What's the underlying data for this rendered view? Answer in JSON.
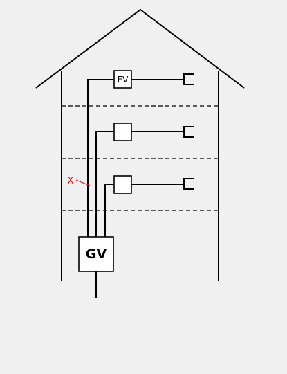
{
  "diagram": {
    "main_distributor_label": "GV",
    "floor_distributor_label": "EV",
    "marker_label": "X",
    "colors": {
      "background": "#f0f0f0",
      "lines": "#000000",
      "marker": "#ff0000"
    }
  }
}
